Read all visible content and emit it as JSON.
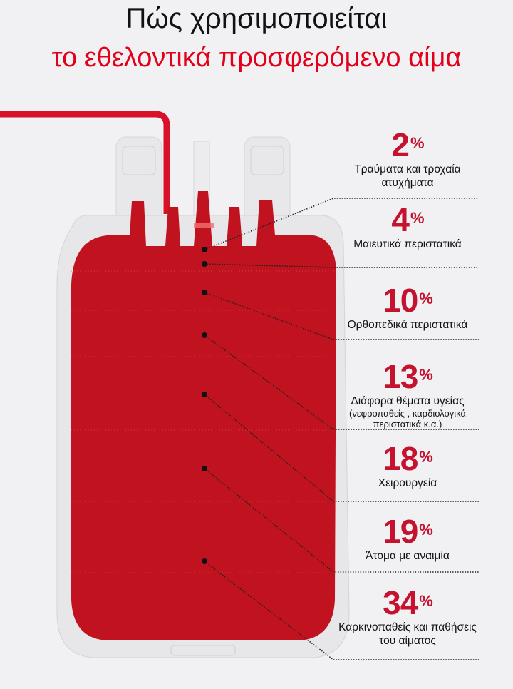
{
  "title": {
    "line1": "Πώς χρησιμοποιείται",
    "line2": "το εθελοντικά προσφερόμενο αίμα"
  },
  "colors": {
    "title_accent": "#e3001b",
    "percent": "#c4122f",
    "blood": "#c0121f",
    "bag": "#e6e6e8"
  },
  "items": [
    {
      "value": "2",
      "unit": "%",
      "label": "Τραύματα και τροχαία ατυχήματα",
      "sub": ""
    },
    {
      "value": "4",
      "unit": "%",
      "label": "Μαιευτικά περιστατικά",
      "sub": ""
    },
    {
      "value": "10",
      "unit": "%",
      "label": "Ορθοπεδικά περιστατικά",
      "sub": ""
    },
    {
      "value": "13",
      "unit": "%",
      "label": "Διάφορα θέματα υγείας",
      "sub": "(νεφροπαθείς , καρδιολογικά περιστατικά κ.α.)"
    },
    {
      "value": "18",
      "unit": "%",
      "label": "Χειρουργεία",
      "sub": ""
    },
    {
      "value": "19",
      "unit": "%",
      "label": "Άτομα με αναιμία",
      "sub": ""
    },
    {
      "value": "34",
      "unit": "%",
      "label": "Καρκινοπαθείς και παθήσεις του αίματος",
      "sub": ""
    }
  ]
}
